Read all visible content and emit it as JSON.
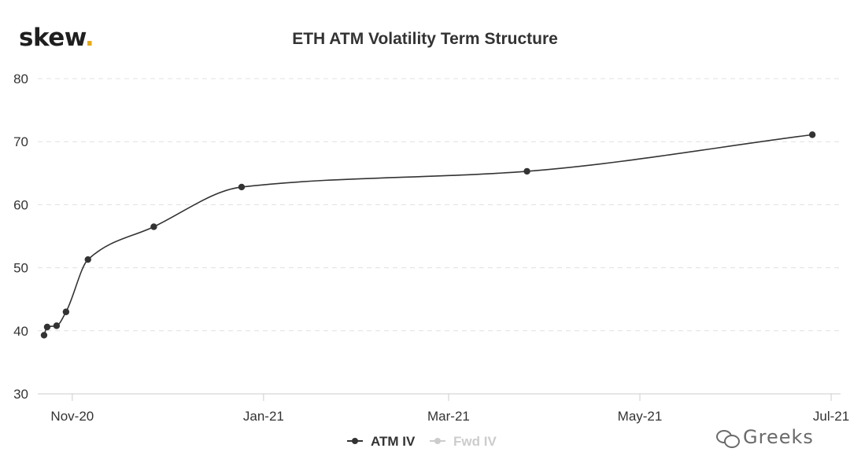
{
  "logo": {
    "text": "skew",
    "dot": "."
  },
  "watermark": {
    "text": "Greeks",
    "icon": "wechat-icon"
  },
  "colors": {
    "line": "#333333",
    "grid": "#e0e0e0",
    "axis": "#cccccc",
    "legend_inactive": "#cccccc",
    "logo_dot": "#e6a817"
  },
  "chart_data": {
    "type": "line",
    "title": "ETH ATM Volatility Term Structure",
    "xlabel": "",
    "ylabel": "",
    "ylim": [
      30,
      80
    ],
    "yticks": [
      30,
      40,
      50,
      60,
      70,
      80
    ],
    "xlim": [
      "2020-10-21",
      "2021-07-04"
    ],
    "xticks": [
      {
        "date": "2020-11-01",
        "label": "Nov-20"
      },
      {
        "date": "2021-01-01",
        "label": "Jan-21"
      },
      {
        "date": "2021-03-01",
        "label": "Mar-21"
      },
      {
        "date": "2021-05-01",
        "label": "May-21"
      },
      {
        "date": "2021-07-01",
        "label": "Jul-21"
      }
    ],
    "grid": true,
    "legend_position": "bottom-center",
    "series": [
      {
        "name": "ATM IV",
        "active": true,
        "points": [
          {
            "x": "2020-10-23",
            "y": 39.3
          },
          {
            "x": "2020-10-24",
            "y": 40.6
          },
          {
            "x": "2020-10-27",
            "y": 40.8
          },
          {
            "x": "2020-10-30",
            "y": 43.0
          },
          {
            "x": "2020-11-06",
            "y": 51.3
          },
          {
            "x": "2020-11-27",
            "y": 56.5
          },
          {
            "x": "2020-12-25",
            "y": 62.8
          },
          {
            "x": "2021-03-26",
            "y": 65.3
          },
          {
            "x": "2021-06-25",
            "y": 71.1
          }
        ]
      },
      {
        "name": "Fwd IV",
        "active": false,
        "points": []
      }
    ]
  }
}
